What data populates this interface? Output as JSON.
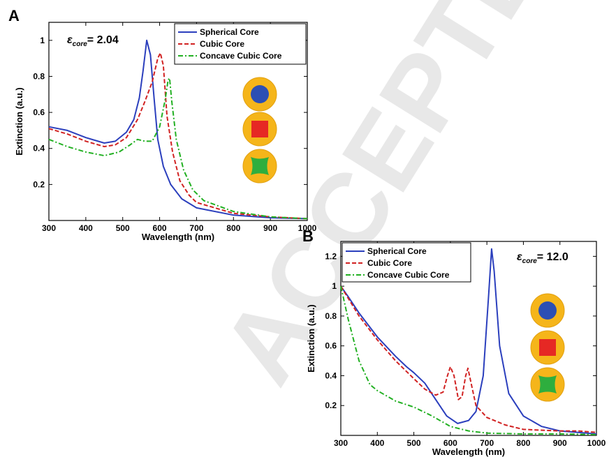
{
  "watermark": "ACCEPTED MANUSCRIPT",
  "chart_data": [
    {
      "panel": "A",
      "type": "line",
      "annotation": {
        "symbol": "ε",
        "sub": "core",
        "value": "= 2.04"
      },
      "xlabel": "Wavelength (nm)",
      "ylabel": "Extinction (a.u.)",
      "xlim": [
        300,
        1000
      ],
      "ylim": [
        0,
        1.1
      ],
      "xticks": [
        "300",
        "400",
        "500",
        "600",
        "700",
        "800",
        "900",
        "1000"
      ],
      "yticks": [
        "0.2",
        "0.4",
        "0.6",
        "0.8",
        "1"
      ],
      "legend_position": "top-right",
      "grid": false,
      "insets": [
        "sphere-core-icon",
        "cube-core-icon",
        "concave-cube-core-icon"
      ],
      "series": [
        {
          "name": "Spherical Core",
          "color": "#2b3fbd",
          "style": "solid",
          "points": [
            [
              300,
              0.52
            ],
            [
              350,
              0.5
            ],
            [
              400,
              0.46
            ],
            [
              450,
              0.43
            ],
            [
              480,
              0.44
            ],
            [
              510,
              0.49
            ],
            [
              530,
              0.56
            ],
            [
              545,
              0.68
            ],
            [
              555,
              0.83
            ],
            [
              565,
              1.0
            ],
            [
              575,
              0.92
            ],
            [
              585,
              0.68
            ],
            [
              595,
              0.45
            ],
            [
              610,
              0.3
            ],
            [
              630,
              0.2
            ],
            [
              660,
              0.12
            ],
            [
              700,
              0.07
            ],
            [
              800,
              0.03
            ],
            [
              900,
              0.015
            ],
            [
              1000,
              0.01
            ]
          ]
        },
        {
          "name": "Cubic Core",
          "color": "#d12222",
          "style": "dashed",
          "points": [
            [
              300,
              0.51
            ],
            [
              350,
              0.48
            ],
            [
              400,
              0.44
            ],
            [
              450,
              0.41
            ],
            [
              480,
              0.42
            ],
            [
              510,
              0.46
            ],
            [
              540,
              0.56
            ],
            [
              560,
              0.66
            ],
            [
              580,
              0.77
            ],
            [
              595,
              0.9
            ],
            [
              602,
              0.93
            ],
            [
              610,
              0.86
            ],
            [
              620,
              0.58
            ],
            [
              635,
              0.38
            ],
            [
              655,
              0.22
            ],
            [
              680,
              0.14
            ],
            [
              700,
              0.1
            ],
            [
              800,
              0.04
            ],
            [
              900,
              0.02
            ],
            [
              1000,
              0.01
            ]
          ]
        },
        {
          "name": "Concave Cubic Core",
          "color": "#22b022",
          "style": "dashdot",
          "points": [
            [
              300,
              0.45
            ],
            [
              350,
              0.41
            ],
            [
              400,
              0.38
            ],
            [
              450,
              0.36
            ],
            [
              490,
              0.38
            ],
            [
              520,
              0.42
            ],
            [
              540,
              0.45
            ],
            [
              560,
              0.44
            ],
            [
              580,
              0.44
            ],
            [
              600,
              0.52
            ],
            [
              615,
              0.67
            ],
            [
              623,
              0.78
            ],
            [
              627,
              0.79
            ],
            [
              633,
              0.66
            ],
            [
              645,
              0.45
            ],
            [
              665,
              0.28
            ],
            [
              690,
              0.17
            ],
            [
              720,
              0.11
            ],
            [
              800,
              0.05
            ],
            [
              900,
              0.02
            ],
            [
              1000,
              0.01
            ]
          ]
        }
      ]
    },
    {
      "panel": "B",
      "type": "line",
      "annotation": {
        "symbol": "ε",
        "sub": "core",
        "value": "= 12.0"
      },
      "xlabel": "Wavelength (nm)",
      "ylabel": "Extinction (a.u.)",
      "xlim": [
        300,
        1000
      ],
      "ylim": [
        0,
        1.3
      ],
      "xticks": [
        "300",
        "400",
        "500",
        "600",
        "700",
        "800",
        "900",
        "1000"
      ],
      "yticks": [
        "0.2",
        "0.4",
        "0.6",
        "0.8",
        "1",
        "1.2"
      ],
      "legend_position": "top-left",
      "grid": false,
      "insets": [
        "sphere-core-icon",
        "cube-core-icon",
        "concave-cube-core-icon"
      ],
      "series": [
        {
          "name": "Spherical Core",
          "color": "#2b3fbd",
          "style": "solid",
          "points": [
            [
              300,
              1.0
            ],
            [
              320,
              0.93
            ],
            [
              350,
              0.82
            ],
            [
              400,
              0.66
            ],
            [
              450,
              0.53
            ],
            [
              480,
              0.46
            ],
            [
              500,
              0.42
            ],
            [
              530,
              0.35
            ],
            [
              560,
              0.24
            ],
            [
              590,
              0.13
            ],
            [
              620,
              0.08
            ],
            [
              650,
              0.1
            ],
            [
              670,
              0.16
            ],
            [
              690,
              0.4
            ],
            [
              705,
              0.95
            ],
            [
              713,
              1.25
            ],
            [
              720,
              1.1
            ],
            [
              735,
              0.6
            ],
            [
              760,
              0.28
            ],
            [
              800,
              0.13
            ],
            [
              850,
              0.06
            ],
            [
              900,
              0.03
            ],
            [
              1000,
              0.01
            ]
          ]
        },
        {
          "name": "Cubic Core",
          "color": "#d12222",
          "style": "dashed",
          "points": [
            [
              300,
              1.0
            ],
            [
              320,
              0.92
            ],
            [
              350,
              0.8
            ],
            [
              400,
              0.64
            ],
            [
              450,
              0.5
            ],
            [
              500,
              0.38
            ],
            [
              530,
              0.31
            ],
            [
              560,
              0.27
            ],
            [
              580,
              0.29
            ],
            [
              592,
              0.4
            ],
            [
              600,
              0.46
            ],
            [
              610,
              0.4
            ],
            [
              622,
              0.24
            ],
            [
              632,
              0.26
            ],
            [
              642,
              0.4
            ],
            [
              648,
              0.45
            ],
            [
              656,
              0.36
            ],
            [
              670,
              0.2
            ],
            [
              700,
              0.12
            ],
            [
              750,
              0.07
            ],
            [
              800,
              0.04
            ],
            [
              900,
              0.03
            ],
            [
              950,
              0.03
            ],
            [
              1000,
              0.02
            ]
          ]
        },
        {
          "name": "Concave Cubic Core",
          "color": "#22b022",
          "style": "dashdot",
          "points": [
            [
              300,
              1.0
            ],
            [
              320,
              0.78
            ],
            [
              350,
              0.5
            ],
            [
              380,
              0.34
            ],
            [
              400,
              0.3
            ],
            [
              450,
              0.23
            ],
            [
              500,
              0.19
            ],
            [
              550,
              0.13
            ],
            [
              600,
              0.06
            ],
            [
              650,
              0.03
            ],
            [
              700,
              0.015
            ],
            [
              800,
              0.01
            ],
            [
              900,
              0.01
            ],
            [
              1000,
              0.005
            ]
          ]
        }
      ]
    }
  ]
}
